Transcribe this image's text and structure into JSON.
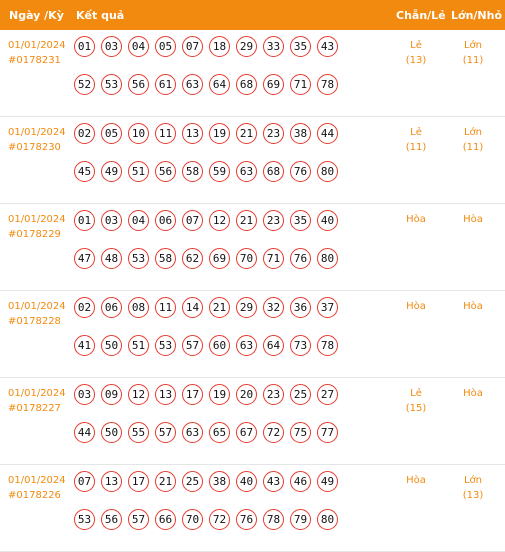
{
  "header": {
    "date_label": "Ngày /Kỳ",
    "result_label": "Kết quả",
    "chanle_label": "Chẵn/Lẻ",
    "lonnho_label": "Lớn/Nhỏ"
  },
  "colors": {
    "accent": "#f28a10",
    "ball_border": "#e53a2f"
  },
  "rows": [
    {
      "date": "01/01/2024",
      "period": "#0178231",
      "numbers": [
        "01",
        "03",
        "04",
        "05",
        "07",
        "18",
        "29",
        "33",
        "35",
        "43",
        "52",
        "53",
        "56",
        "61",
        "63",
        "64",
        "68",
        "69",
        "71",
        "78"
      ],
      "chanle": "Lẻ",
      "chanle_count": "(13)",
      "lonnho": "Lớn",
      "lonnho_count": "(11)"
    },
    {
      "date": "01/01/2024",
      "period": "#0178230",
      "numbers": [
        "02",
        "05",
        "10",
        "11",
        "13",
        "19",
        "21",
        "23",
        "38",
        "44",
        "45",
        "49",
        "51",
        "56",
        "58",
        "59",
        "63",
        "68",
        "76",
        "80"
      ],
      "chanle": "Lẻ",
      "chanle_count": "(11)",
      "lonnho": "Lớn",
      "lonnho_count": "(11)"
    },
    {
      "date": "01/01/2024",
      "period": "#0178229",
      "numbers": [
        "01",
        "03",
        "04",
        "06",
        "07",
        "12",
        "21",
        "23",
        "35",
        "40",
        "47",
        "48",
        "53",
        "58",
        "62",
        "69",
        "70",
        "71",
        "76",
        "80"
      ],
      "chanle": "Hòa",
      "chanle_count": "",
      "lonnho": "Hòa",
      "lonnho_count": ""
    },
    {
      "date": "01/01/2024",
      "period": "#0178228",
      "numbers": [
        "02",
        "06",
        "08",
        "11",
        "14",
        "21",
        "29",
        "32",
        "36",
        "37",
        "41",
        "50",
        "51",
        "53",
        "57",
        "60",
        "63",
        "64",
        "73",
        "78"
      ],
      "chanle": "Hòa",
      "chanle_count": "",
      "lonnho": "Hòa",
      "lonnho_count": ""
    },
    {
      "date": "01/01/2024",
      "period": "#0178227",
      "numbers": [
        "03",
        "09",
        "12",
        "13",
        "17",
        "19",
        "20",
        "23",
        "25",
        "27",
        "44",
        "50",
        "55",
        "57",
        "63",
        "65",
        "67",
        "72",
        "75",
        "77"
      ],
      "chanle": "Lẻ",
      "chanle_count": "(15)",
      "lonnho": "Hòa",
      "lonnho_count": ""
    },
    {
      "date": "01/01/2024",
      "period": "#0178226",
      "numbers": [
        "07",
        "13",
        "17",
        "21",
        "25",
        "38",
        "40",
        "43",
        "46",
        "49",
        "53",
        "56",
        "57",
        "66",
        "70",
        "72",
        "76",
        "78",
        "79",
        "80"
      ],
      "chanle": "Hòa",
      "chanle_count": "",
      "lonnho": "Lớn",
      "lonnho_count": "(13)"
    }
  ]
}
